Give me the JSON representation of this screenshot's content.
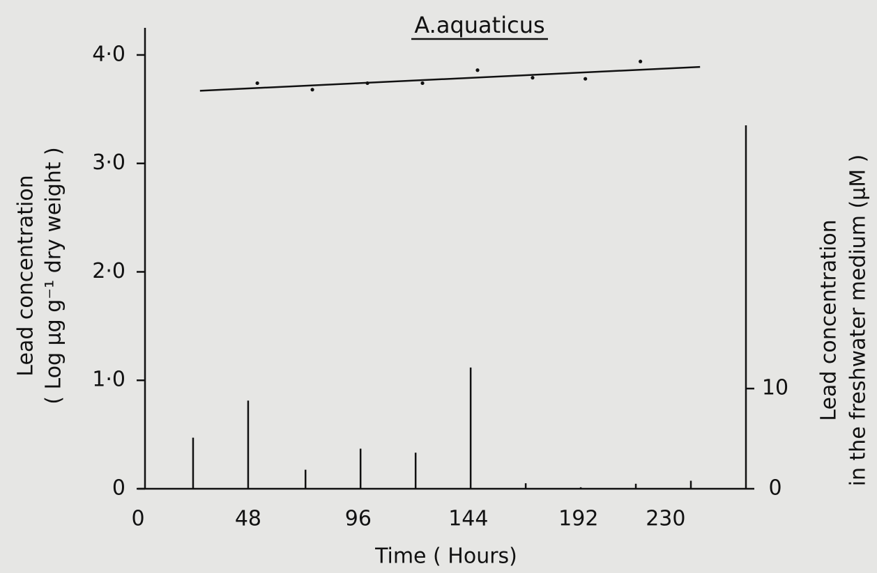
{
  "chart_data": {
    "type": "combo",
    "title": "A.aquaticus",
    "xlabel": "Time ( Hours)",
    "ylabel": [
      "Lead concentration",
      "( Log μg g⁻¹ dry weight )"
    ],
    "y2label": [
      "Lead concentration",
      "in the freshwater medium (μM )"
    ],
    "xlim": [
      0,
      265
    ],
    "xticks": [
      0,
      48,
      96,
      144,
      192,
      230
    ],
    "ylim": [
      0,
      4.25
    ],
    "yticks": [
      0,
      {
        "value": 1,
        "label": "1·0"
      },
      {
        "value": 2,
        "label": "2·0"
      },
      {
        "value": 3,
        "label": "3·0"
      },
      {
        "value": 4,
        "label": "4·0"
      }
    ],
    "y2lim": [
      0,
      46
    ],
    "y2ticks": [
      0,
      10
    ],
    "series": [
      {
        "type": "scatter",
        "color": "#111",
        "x": [
          52,
          76,
          100,
          124,
          148,
          172,
          195,
          219
        ],
        "values": [
          3.74,
          3.68,
          3.74,
          3.74,
          3.86,
          3.79,
          3.78,
          3.94
        ]
      },
      {
        "type": "line",
        "color": "#111",
        "x": [
          27,
          245
        ],
        "values": [
          3.67,
          3.89
        ]
      },
      {
        "type": "bar",
        "axis": "y2",
        "color": "#111",
        "x": [
          24,
          48,
          73,
          97,
          121,
          145,
          169,
          193,
          217,
          241
        ],
        "values": [
          5.1,
          8.8,
          1.9,
          4.0,
          3.6,
          12.1,
          0.55,
          0.15,
          0.5,
          0.8
        ]
      }
    ]
  }
}
